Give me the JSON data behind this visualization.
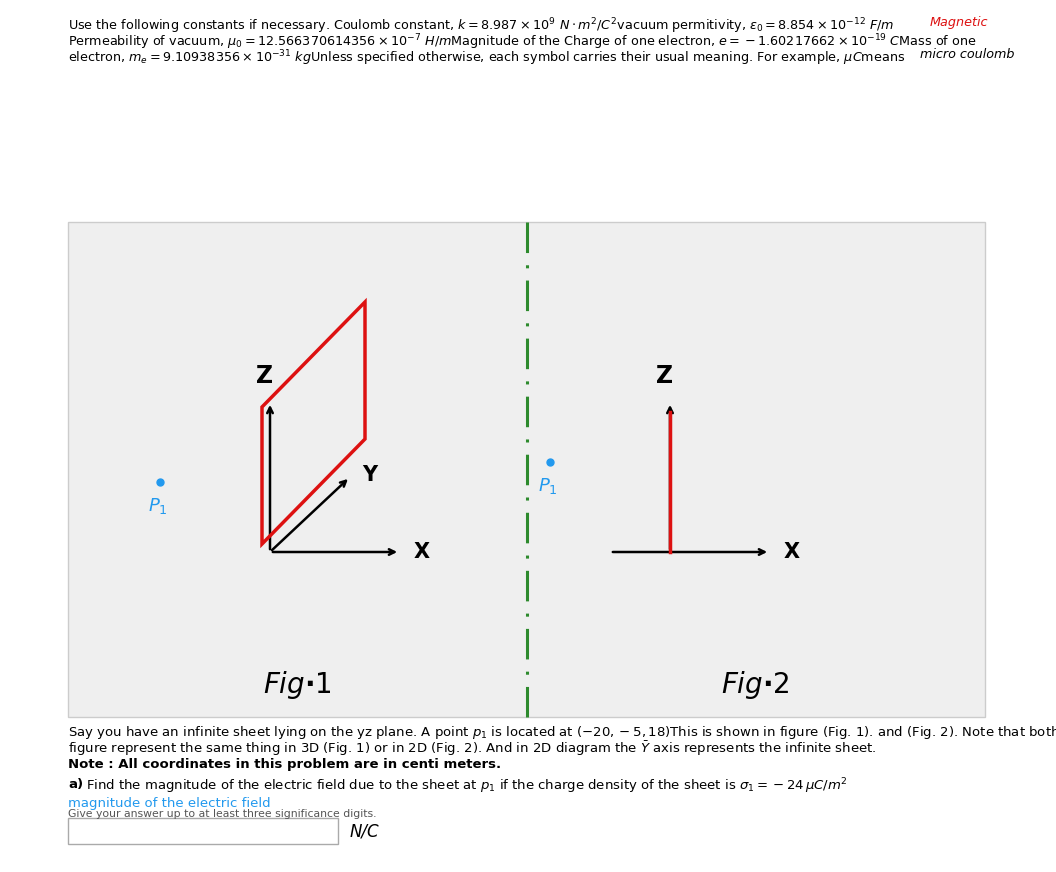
{
  "fig_bg": "#ffffff",
  "panel_bg": "#efefef",
  "divider_color": "#2d8a2d",
  "red_color": "#dd1111",
  "blue_color": "#2299ee",
  "black": "#000000",
  "header_line1_a": "Use the following constants if necessary. Coulomb constant, ",
  "header_line1_b": "k = 8.987 \\times 10^9\\ N \\cdot m^2/C^2",
  "header_line1_c": "vacuum permitivity, \\varepsilon_0 = 8.854 \\times 10^{-12}\\ F/m",
  "header_line1_d": "Magnetic",
  "header_line2_a": "Permeability of vacuum, \\mu_0 = 12.566370614356 \\times 10^{-7}\\ H/m",
  "header_line2_b": "Magnitude of the Charge of one electron, e = -1.60217662 \\times 10^{-19}\\ C",
  "header_line2_c": "Mass of one",
  "header_line3_a": "electron, m_e = 9.10938356 \\times 10^{-31}\\ kg",
  "header_line3_b": "Unless specified otherwise, each symbol carries their usual meaning. For example, \\mu C",
  "header_line3_c": "means",
  "header_line3_d": "micro coulomb",
  "fig1_label": "Fig. 1",
  "fig2_label": "Fig. 2",
  "body1a": "Say you have an infinite sheet lying on the yz plane. A point ",
  "body1b": "p_1",
  "body1c": " is located at (\\u221220, \\u22125, 18)This is shown in figure (Fig. 1). and (Fig. 2). Note that both",
  "body2a": "figure represent the same thing in 3D (Fig. 1) or in 2D (Fig. 2). And in 2D diagram the ",
  "body2b": "\\bar{Y}",
  "body2c": " axis represents the infinite sheet.",
  "note": "Note : All coordinates in this problem are in centi meters.",
  "parta_label": "a)",
  "parta_text": "Find the magnitude of the electric field due to the sheet at ",
  "parta_p1": "p_1",
  "parta_rest": " if the charge density of the sheet is \\sigma_1 = -24\\,\\mu C/m^2",
  "mag_label": "magnitude of the electric field",
  "sig_label": "Give your answer up to at least three significance digits.",
  "unit": "N/C"
}
